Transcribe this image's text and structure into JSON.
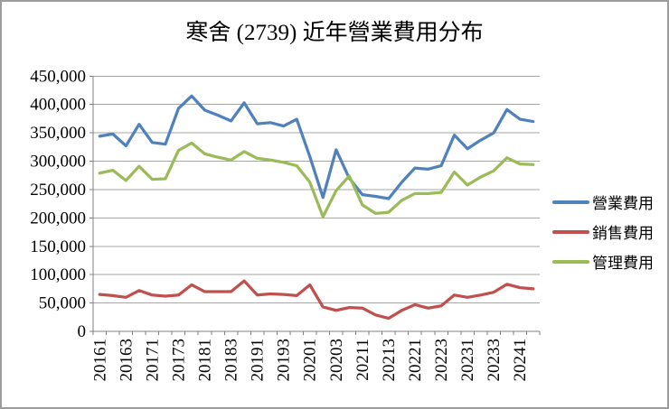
{
  "chart_data": {
    "type": "line",
    "title": "寒舍 (2739) 近年營業費用分布",
    "categories": [
      "20161",
      "20162",
      "20163",
      "20164",
      "20171",
      "20172",
      "20173",
      "20174",
      "20181",
      "20182",
      "20183",
      "20184",
      "20191",
      "20192",
      "20193",
      "20194",
      "20201",
      "20202",
      "20203",
      "20204",
      "20211",
      "20212",
      "20213",
      "20214",
      "20221",
      "20222",
      "20223",
      "20224",
      "20231",
      "20232",
      "20233",
      "20234",
      "20241",
      "20242"
    ],
    "x_label_interval": 2,
    "ylim": [
      0,
      450000
    ],
    "y_tick_step": 50000,
    "y_tick_labels": [
      "0",
      "50,000",
      "100,000",
      "150,000",
      "200,000",
      "250,000",
      "300,000",
      "350,000",
      "400,000",
      "450,000"
    ],
    "grid": "horizontal",
    "legend_position": "right",
    "axis_color": "#808080",
    "grid_color": "#a6a6a6",
    "text_color": "#000000",
    "series": [
      {
        "id": "operating-expenses",
        "name": "營業費用",
        "color": "#4F81BD",
        "values": [
          344000,
          348000,
          327000,
          365000,
          333000,
          330000,
          393000,
          415000,
          390000,
          381000,
          371000,
          403000,
          366000,
          368000,
          362000,
          374000,
          308000,
          236000,
          320000,
          270000,
          241000,
          238000,
          234000,
          263000,
          288000,
          286000,
          292000,
          346000,
          322000,
          337000,
          350000,
          391000,
          374000,
          370000
        ]
      },
      {
        "id": "selling-expenses",
        "name": "銷售費用",
        "color": "#C0504D",
        "values": [
          65000,
          63000,
          60000,
          72000,
          64000,
          62000,
          64000,
          82000,
          70000,
          70000,
          70000,
          89000,
          64000,
          66000,
          65000,
          63000,
          82000,
          43000,
          37000,
          42000,
          41000,
          29000,
          23000,
          37000,
          47000,
          41000,
          45000,
          64000,
          60000,
          64000,
          69000,
          83000,
          77000,
          75000
        ]
      },
      {
        "id": "administrative-expenses",
        "name": "管理費用",
        "color": "#9BBB59",
        "values": [
          279000,
          284000,
          266000,
          291000,
          268000,
          269000,
          319000,
          332000,
          313000,
          307000,
          302000,
          317000,
          305000,
          302000,
          298000,
          292000,
          263000,
          202000,
          248000,
          274000,
          223000,
          208000,
          210000,
          231000,
          243000,
          243000,
          245000,
          281000,
          258000,
          272000,
          283000,
          306000,
          295000,
          294000
        ]
      }
    ]
  }
}
